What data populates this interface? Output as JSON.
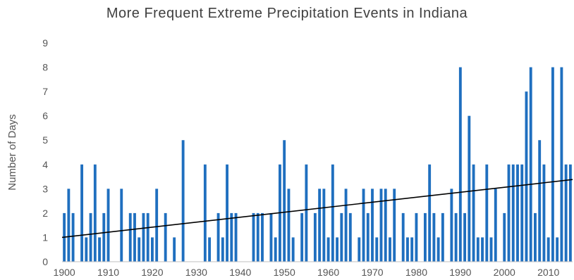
{
  "chart_data": {
    "type": "bar",
    "title": "More Frequent Extreme Precipitation Events in Indiana",
    "ylabel": "Number of Days",
    "xlabel": "",
    "ylim": [
      0,
      9
    ],
    "xlim": [
      1900,
      2015
    ],
    "grid": false,
    "legend": "none",
    "bar_color": "#1f6fbf",
    "trend_color": "#000000",
    "x_ticks": [
      1900,
      1910,
      1920,
      1930,
      1940,
      1950,
      1960,
      1970,
      1980,
      1990,
      2000,
      2010
    ],
    "y_ticks": [
      0,
      1,
      2,
      3,
      4,
      5,
      6,
      7,
      8,
      9
    ],
    "years": [
      1900,
      1901,
      1902,
      1903,
      1904,
      1905,
      1906,
      1907,
      1908,
      1909,
      1910,
      1911,
      1912,
      1913,
      1914,
      1915,
      1916,
      1917,
      1918,
      1919,
      1920,
      1921,
      1922,
      1923,
      1924,
      1925,
      1926,
      1927,
      1928,
      1929,
      1930,
      1931,
      1932,
      1933,
      1934,
      1935,
      1936,
      1937,
      1938,
      1939,
      1940,
      1941,
      1942,
      1943,
      1944,
      1945,
      1946,
      1947,
      1948,
      1949,
      1950,
      1951,
      1952,
      1953,
      1954,
      1955,
      1956,
      1957,
      1958,
      1959,
      1960,
      1961,
      1962,
      1963,
      1964,
      1965,
      1966,
      1967,
      1968,
      1969,
      1970,
      1971,
      1972,
      1973,
      1974,
      1975,
      1976,
      1977,
      1978,
      1979,
      1980,
      1981,
      1982,
      1983,
      1984,
      1985,
      1986,
      1987,
      1988,
      1989,
      1990,
      1991,
      1992,
      1993,
      1994,
      1995,
      1996,
      1997,
      1998,
      1999,
      2000,
      2001,
      2002,
      2003,
      2004,
      2005,
      2006,
      2007,
      2008,
      2009,
      2010,
      2011,
      2012,
      2013,
      2014,
      2015
    ],
    "values": [
      2,
      3,
      2,
      0,
      4,
      1,
      2,
      4,
      1,
      2,
      3,
      0,
      0,
      3,
      0,
      2,
      2,
      1,
      2,
      2,
      1,
      3,
      0,
      2,
      0,
      1,
      0,
      5,
      0,
      0,
      0,
      0,
      4,
      1,
      0,
      2,
      1,
      4,
      2,
      2,
      0,
      0,
      0,
      2,
      2,
      2,
      0,
      2,
      1,
      4,
      5,
      3,
      1,
      0,
      2,
      4,
      0,
      2,
      3,
      3,
      1,
      4,
      1,
      2,
      3,
      2,
      0,
      1,
      3,
      2,
      3,
      1,
      3,
      3,
      1,
      3,
      0,
      2,
      1,
      1,
      2,
      0,
      2,
      4,
      2,
      1,
      2,
      0,
      3,
      2,
      8,
      2,
      6,
      4,
      1,
      1,
      4,
      1,
      3,
      0,
      2,
      4,
      4,
      4,
      4,
      7,
      8,
      2,
      5,
      4,
      1,
      8,
      1,
      8,
      4,
      4
    ],
    "trend": {
      "start": [
        1900,
        1.0
      ],
      "end": [
        2016,
        3.38
      ]
    }
  }
}
